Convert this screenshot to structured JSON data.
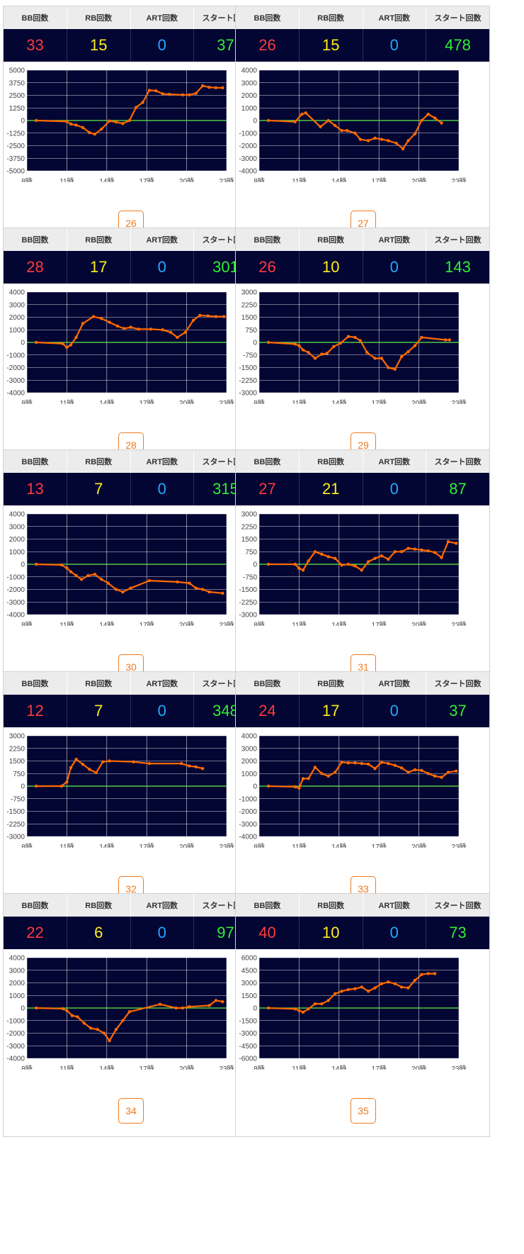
{
  "headers": {
    "bb": "BB回数",
    "rb": "RB回数",
    "art": "ART回数",
    "start": "スタート回数"
  },
  "x_tick_labels": [
    "8時",
    "11時",
    "14時",
    "17時",
    "20時",
    "23時"
  ],
  "colors": {
    "plot_bg": "#030533",
    "line": "#ff6a00",
    "zero_line": "#66ee44",
    "grid": "#ffffff",
    "bb": "#ff3b3b",
    "rb": "#ffef1a",
    "art": "#22aaff",
    "start": "#33ee33",
    "badge": "#f07a20"
  },
  "cards": [
    {
      "bb": "33",
      "rb": "15",
      "art": "0",
      "start": "37",
      "badge": "26"
    },
    {
      "bb": "26",
      "rb": "15",
      "art": "0",
      "start": "478",
      "badge": "27"
    },
    {
      "bb": "28",
      "rb": "17",
      "art": "0",
      "start": "301",
      "badge": "28"
    },
    {
      "bb": "26",
      "rb": "10",
      "art": "0",
      "start": "143",
      "badge": "29"
    },
    {
      "bb": "13",
      "rb": "7",
      "art": "0",
      "start": "315",
      "badge": "30"
    },
    {
      "bb": "27",
      "rb": "21",
      "art": "0",
      "start": "87",
      "badge": "31"
    },
    {
      "bb": "12",
      "rb": "7",
      "art": "0",
      "start": "348",
      "badge": "32"
    },
    {
      "bb": "24",
      "rb": "17",
      "art": "0",
      "start": "37",
      "badge": "33"
    },
    {
      "bb": "22",
      "rb": "6",
      "art": "0",
      "start": "97",
      "badge": "34"
    },
    {
      "bb": "40",
      "rb": "10",
      "art": "0",
      "start": "73",
      "badge": "35"
    }
  ],
  "chart_data": [
    {
      "type": "line",
      "x_range": [
        8,
        23
      ],
      "ylim": [
        -5000,
        5000
      ],
      "yticks": [
        "5000",
        "3750",
        "2500",
        "1250",
        "0",
        "-1250",
        "-2500",
        "-3750",
        "-5000"
      ],
      "x": [
        8.7,
        11,
        11.3,
        11.7,
        12.2,
        12.7,
        13.1,
        13.6,
        14.2,
        14.7,
        15.2,
        15.7,
        16.2,
        16.7,
        17.2,
        17.7,
        18.2,
        18.7,
        19.7,
        20.2,
        20.7,
        21.2,
        21.7,
        22.2,
        22.7
      ],
      "y": [
        0,
        -100,
        -350,
        -450,
        -700,
        -1200,
        -1350,
        -850,
        -50,
        -150,
        -300,
        0,
        1300,
        1800,
        3000,
        2950,
        2650,
        2600,
        2550,
        2550,
        2700,
        3450,
        3300,
        3250,
        3250
      ]
    },
    {
      "type": "line",
      "x_range": [
        8,
        23
      ],
      "ylim": [
        -4000,
        4000
      ],
      "yticks": [
        "4000",
        "3000",
        "2000",
        "1000",
        "0",
        "-1000",
        "-2000",
        "-3000",
        "-4000"
      ],
      "x": [
        8.7,
        10.7,
        11.2,
        11.5,
        12.6,
        13.2,
        13.7,
        14.2,
        14.6,
        15.2,
        15.6,
        16.2,
        16.7,
        17.2,
        17.7,
        18.3,
        18.8,
        19.2,
        19.7,
        20.2,
        20.7,
        21.2,
        21.7
      ],
      "y": [
        0,
        -100,
        500,
        600,
        -500,
        0,
        -400,
        -800,
        -800,
        -1000,
        -1500,
        -1600,
        -1400,
        -1500,
        -1600,
        -1800,
        -2250,
        -1600,
        -1050,
        0,
        500,
        200,
        -200
      ]
    },
    {
      "type": "line",
      "x_range": [
        8,
        23
      ],
      "ylim": [
        -4000,
        4000
      ],
      "yticks": [
        "4000",
        "3000",
        "2000",
        "1000",
        "0",
        "-1000",
        "-2000",
        "-3000",
        "-4000"
      ],
      "x": [
        8.7,
        10.7,
        11,
        11.3,
        11.7,
        12.2,
        13,
        13.6,
        14.2,
        14.8,
        15.3,
        15.8,
        16.4,
        17.3,
        18.2,
        18.8,
        19.3,
        19.9,
        20.5,
        21,
        21.6,
        22.2,
        22.8
      ],
      "y": [
        0,
        -100,
        -400,
        -200,
        400,
        1500,
        2050,
        1900,
        1600,
        1300,
        1100,
        1200,
        1050,
        1050,
        1000,
        800,
        400,
        800,
        1750,
        2150,
        2100,
        2050,
        2050
      ]
    },
    {
      "type": "line",
      "x_range": [
        8,
        23
      ],
      "ylim": [
        -3000,
        3000
      ],
      "yticks": [
        "3000",
        "2250",
        "1500",
        "750",
        "0",
        "-750",
        "-1500",
        "-2250",
        "-3000"
      ],
      "x": [
        8.7,
        10.7,
        11,
        11.3,
        11.7,
        12.2,
        12.7,
        13.1,
        13.6,
        14.1,
        14.7,
        15.2,
        15.6,
        16.1,
        16.7,
        17.2,
        17.7,
        18.2,
        18.7,
        19.2,
        19.7,
        20.2,
        22,
        22.3
      ],
      "y": [
        0,
        -100,
        -200,
        -450,
        -600,
        -950,
        -700,
        -650,
        -250,
        -50,
        350,
        300,
        100,
        -600,
        -950,
        -950,
        -1500,
        -1600,
        -850,
        -550,
        -200,
        300,
        150,
        150
      ]
    },
    {
      "type": "line",
      "x_range": [
        8,
        23
      ],
      "ylim": [
        -4000,
        4000
      ],
      "yticks": [
        "4000",
        "3000",
        "2000",
        "1000",
        "0",
        "-1000",
        "-2000",
        "-3000",
        "-4000"
      ],
      "x": [
        8.7,
        10.6,
        11,
        11.3,
        11.7,
        12.1,
        12.6,
        13.1,
        13.6,
        14.1,
        14.7,
        15.2,
        15.8,
        17.2,
        19.3,
        20.2,
        20.7,
        21.2,
        21.7,
        22.7
      ],
      "y": [
        0,
        -50,
        -300,
        -600,
        -900,
        -1200,
        -900,
        -800,
        -1200,
        -1500,
        -2000,
        -2200,
        -1900,
        -1300,
        -1400,
        -1500,
        -1900,
        -2000,
        -2200,
        -2300
      ]
    },
    {
      "type": "line",
      "x_range": [
        8,
        23
      ],
      "ylim": [
        -3000,
        3000
      ],
      "yticks": [
        "3000",
        "2250",
        "1500",
        "750",
        "0",
        "-750",
        "-1500",
        "-2250",
        "-3000"
      ],
      "x": [
        8.7,
        10.7,
        11,
        11.3,
        11.7,
        12.2,
        12.7,
        13.2,
        13.7,
        14.2,
        14.7,
        15.2,
        15.7,
        16.2,
        16.7,
        17.2,
        17.7,
        18.2,
        18.7,
        19.2,
        19.7,
        20.2,
        20.7,
        21.2,
        21.7,
        22.2,
        22.8
      ],
      "y": [
        0,
        0,
        -250,
        -350,
        200,
        750,
        600,
        450,
        350,
        -50,
        0,
        -100,
        -350,
        150,
        350,
        500,
        300,
        750,
        750,
        950,
        900,
        850,
        800,
        700,
        400,
        1350,
        1250
      ]
    },
    {
      "type": "line",
      "x_range": [
        8,
        23
      ],
      "ylim": [
        -3000,
        3000
      ],
      "yticks": [
        "3000",
        "2250",
        "1500",
        "750",
        "0",
        "-750",
        "-1500",
        "-2250",
        "-3000"
      ],
      "x": [
        8.7,
        10.6,
        11,
        11.3,
        11.7,
        12.2,
        12.7,
        13.2,
        13.7,
        14.2,
        16,
        17.2,
        19.6,
        20.2,
        20.7,
        21.2
      ],
      "y": [
        0,
        0,
        250,
        1100,
        1600,
        1300,
        1000,
        800,
        1450,
        1500,
        1450,
        1350,
        1350,
        1200,
        1150,
        1050
      ]
    },
    {
      "type": "line",
      "x_range": [
        8,
        23
      ],
      "ylim": [
        -4000,
        4000
      ],
      "yticks": [
        "4000",
        "3000",
        "2000",
        "1000",
        "0",
        "-1000",
        "-2000",
        "-3000",
        "-4000"
      ],
      "x": [
        8.7,
        10.7,
        11,
        11.3,
        11.7,
        12.2,
        12.7,
        13.2,
        13.7,
        14.2,
        14.7,
        15.2,
        15.7,
        16.2,
        16.7,
        17.2,
        17.7,
        18.2,
        18.7,
        19.2,
        19.7,
        20.2,
        20.7,
        21.2,
        21.7,
        22.2,
        22.8
      ],
      "y": [
        0,
        -50,
        -150,
        600,
        600,
        1500,
        1000,
        800,
        1100,
        1900,
        1850,
        1850,
        1800,
        1750,
        1400,
        1900,
        1800,
        1650,
        1450,
        1100,
        1300,
        1250,
        1000,
        800,
        700,
        1100,
        1200
      ]
    },
    {
      "type": "line",
      "x_range": [
        8,
        23
      ],
      "ylim": [
        -4000,
        4000
      ],
      "yticks": [
        "4000",
        "3000",
        "2000",
        "1000",
        "0",
        "-1000",
        "-2000",
        "-3000",
        "-4000"
      ],
      "x": [
        8.7,
        10.7,
        11,
        11.4,
        11.8,
        12.3,
        12.8,
        13.3,
        13.8,
        14.2,
        14.7,
        15.2,
        15.7,
        18,
        19.2,
        19.7,
        20.2,
        21.7,
        22.2,
        22.7
      ],
      "y": [
        0,
        -50,
        -200,
        -600,
        -700,
        -1200,
        -1600,
        -1700,
        -2000,
        -2600,
        -1700,
        -1000,
        -300,
        300,
        0,
        0,
        100,
        200,
        600,
        500
      ]
    },
    {
      "type": "line",
      "x_range": [
        8,
        23
      ],
      "ylim": [
        -6000,
        6000
      ],
      "yticks": [
        "6000",
        "4500",
        "3000",
        "1500",
        "0",
        "-1500",
        "-3000",
        "-4500",
        "-6000"
      ],
      "x": [
        8.7,
        10.7,
        11,
        11.3,
        11.7,
        12.2,
        12.7,
        13.2,
        13.7,
        14.2,
        14.7,
        15.2,
        15.7,
        16.2,
        16.7,
        17.2,
        17.7,
        18.2,
        18.7,
        19.2,
        19.7,
        20.2,
        20.7,
        21.2
      ],
      "y": [
        0,
        -100,
        -300,
        -500,
        -100,
        500,
        500,
        900,
        1700,
        2000,
        2200,
        2300,
        2500,
        2000,
        2400,
        2900,
        3100,
        2900,
        2500,
        2400,
        3300,
        4000,
        4100,
        4100
      ]
    }
  ]
}
